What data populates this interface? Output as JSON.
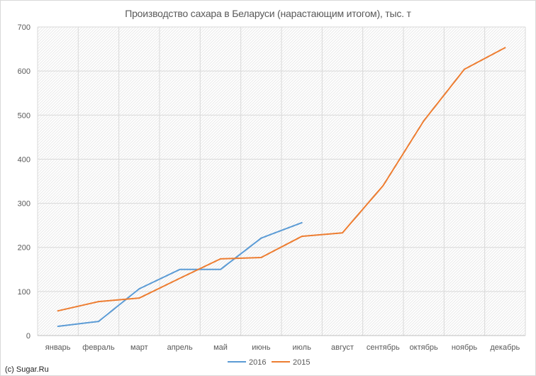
{
  "chart_data": {
    "type": "line",
    "title": "Производство сахара в Беларуси (нарастающим итогом), тыс. т",
    "xlabel": "",
    "ylabel": "",
    "categories": [
      "январь",
      "февраль",
      "март",
      "апрель",
      "май",
      "июнь",
      "июль",
      "август",
      "сентябрь",
      "октябрь",
      "ноябрь",
      "декабрь"
    ],
    "ylim": [
      0,
      700
    ],
    "yticks": [
      0,
      100,
      200,
      300,
      400,
      500,
      600,
      700
    ],
    "grid": true,
    "legend_position": "bottom",
    "series": [
      {
        "name": "2016",
        "color": "#5b9bd5",
        "values": [
          21,
          32,
          106,
          150,
          150,
          221,
          256,
          null,
          null,
          null,
          null,
          null
        ]
      },
      {
        "name": "2015",
        "color": "#ed7d31",
        "values": [
          56,
          77,
          85,
          130,
          174,
          177,
          225,
          233,
          340,
          487,
          604,
          653
        ]
      }
    ]
  },
  "credit": "(c) Sugar.Ru",
  "background_pattern": "diagonal-hatch"
}
